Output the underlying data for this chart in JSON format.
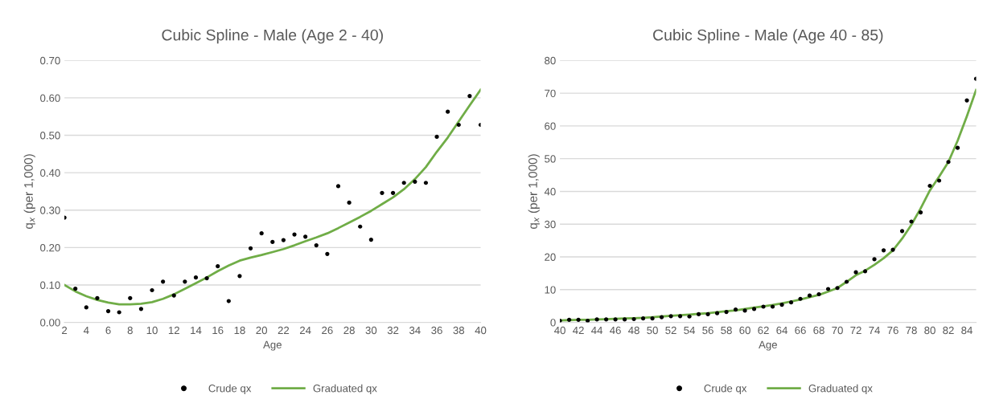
{
  "chart_data": [
    {
      "type": "scatter",
      "title": "Cubic Spline - Male (Age 2 - 40)",
      "xlabel": "Age",
      "ylabel": "q$_{x}$ (per 1,000)",
      "legend": "bottom",
      "grid": "y",
      "xlim": [
        2,
        40
      ],
      "xticks": [
        2,
        4,
        6,
        8,
        10,
        12,
        14,
        16,
        18,
        20,
        22,
        24,
        26,
        28,
        30,
        32,
        34,
        36,
        38,
        40
      ],
      "ylim": [
        0,
        0.7
      ],
      "yticks": [
        {
          "value": 0,
          "label": "0.00"
        },
        {
          "value": 0.1,
          "label": "0.10"
        },
        {
          "value": 0.2,
          "label": "0.20"
        },
        {
          "value": 0.3,
          "label": "0.30"
        },
        {
          "value": 0.4,
          "label": "0.40"
        },
        {
          "value": 0.5,
          "label": "0.50"
        },
        {
          "value": 0.6,
          "label": "0.60"
        },
        {
          "value": 0.7,
          "label": "0.70"
        }
      ],
      "x": [
        2,
        3,
        4,
        5,
        6,
        7,
        8,
        9,
        10,
        11,
        12,
        13,
        14,
        15,
        16,
        17,
        18,
        19,
        20,
        21,
        22,
        23,
        24,
        25,
        26,
        27,
        28,
        29,
        30,
        31,
        32,
        33,
        34,
        35,
        36,
        37,
        38,
        39,
        40
      ],
      "series": [
        {
          "name": "Crude qx",
          "marker": "circle",
          "color": "#000000",
          "values": [
            0.28,
            0.09,
            0.04,
            0.065,
            0.03,
            0.027,
            0.065,
            0.036,
            0.086,
            0.109,
            0.072,
            0.109,
            0.12,
            0.118,
            0.15,
            0.057,
            0.124,
            0.198,
            0.238,
            0.215,
            0.22,
            0.235,
            0.229,
            0.206,
            0.183,
            0.364,
            0.32,
            0.256,
            0.221,
            0.346,
            0.346,
            0.373,
            0.376,
            0.373,
            0.496,
            0.563,
            0.528,
            0.605,
            0.528
          ]
        },
        {
          "name": "Graduated qx",
          "type": "line",
          "marker": "none",
          "line_style": "solid",
          "color": "#70ad47",
          "values": [
            0.1,
            0.083,
            0.07,
            0.06,
            0.053,
            0.048,
            0.048,
            0.05,
            0.054,
            0.063,
            0.075,
            0.09,
            0.105,
            0.12,
            0.137,
            0.152,
            0.165,
            0.173,
            0.18,
            0.188,
            0.196,
            0.206,
            0.217,
            0.227,
            0.238,
            0.252,
            0.267,
            0.282,
            0.298,
            0.316,
            0.334,
            0.356,
            0.383,
            0.415,
            0.456,
            0.494,
            0.537,
            0.58,
            0.622
          ]
        }
      ]
    },
    {
      "type": "scatter",
      "title": "Cubic Spline - Male (Age 40 - 85)",
      "xlabel": "Age",
      "ylabel": "q$_{x}$ (per 1,000)",
      "legend": "bottom",
      "grid": "y",
      "xlim": [
        40,
        85
      ],
      "xticks": [
        40,
        42,
        44,
        46,
        48,
        50,
        52,
        54,
        56,
        58,
        60,
        62,
        64,
        66,
        68,
        70,
        72,
        74,
        76,
        78,
        80,
        82,
        84
      ],
      "ylim": [
        0,
        80
      ],
      "yticks": [
        0,
        10,
        20,
        30,
        40,
        50,
        60,
        70,
        80
      ],
      "x": [
        40,
        41,
        42,
        43,
        44,
        45,
        46,
        47,
        48,
        49,
        50,
        51,
        52,
        53,
        54,
        55,
        56,
        57,
        58,
        59,
        60,
        61,
        62,
        63,
        64,
        65,
        66,
        67,
        68,
        69,
        70,
        71,
        72,
        73,
        74,
        75,
        76,
        77,
        78,
        79,
        80,
        81,
        82,
        83,
        84,
        85
      ],
      "series": [
        {
          "name": "Crude qx",
          "marker": "circle",
          "color": "#000000",
          "values": [
            0.5,
            0.8,
            0.8,
            0.5,
            0.9,
            0.9,
            0.9,
            0.9,
            1.0,
            1.2,
            1.2,
            1.6,
            1.9,
            1.9,
            1.8,
            2.5,
            2.5,
            2.8,
            3.2,
            3.9,
            3.6,
            4.1,
            4.8,
            4.8,
            5.4,
            6.1,
            7.2,
            8.2,
            8.6,
            10.2,
            10.5,
            12.4,
            15.3,
            15.6,
            19.3,
            22,
            22.2,
            27.9,
            30.8,
            33.6,
            41.7,
            43.3,
            49,
            53.3,
            67.8,
            74.4
          ]
        },
        {
          "name": "Graduated qx",
          "type": "line",
          "marker": "none",
          "line_style": "solid",
          "color": "#70ad47",
          "values": [
            0.6,
            0.7,
            0.8,
            0.8,
            0.9,
            1.0,
            1.1,
            1.2,
            1.3,
            1.4,
            1.6,
            1.8,
            2.0,
            2.2,
            2.4,
            2.6,
            2.8,
            3.1,
            3.4,
            3.7,
            4.1,
            4.5,
            4.9,
            5.3,
            5.8,
            6.4,
            7.0,
            7.7,
            8.4,
            9.4,
            10.5,
            12.4,
            14.4,
            15.8,
            17.6,
            19.6,
            22.0,
            25.6,
            29.8,
            34.8,
            40.3,
            44.5,
            49,
            55.5,
            63,
            71
          ]
        }
      ]
    }
  ]
}
